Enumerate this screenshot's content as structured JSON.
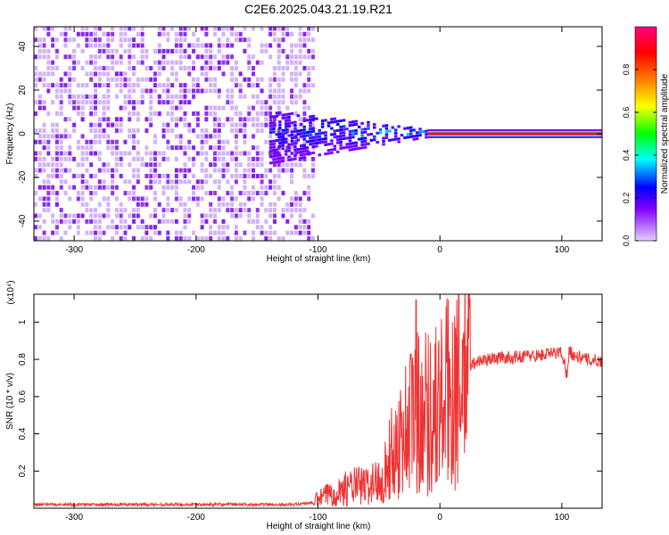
{
  "title": "C2E6.2025.043.21.19.R21",
  "chart_data": [
    {
      "type": "heatmap",
      "xlabel": "Height of straight line (km)",
      "ylabel": "Frequency (Hz)",
      "xlim": [
        -333,
        133
      ],
      "ylim": [
        -49,
        49
      ],
      "xticks": [
        -300,
        -200,
        -100,
        0,
        100
      ],
      "yticks": [
        -40,
        -20,
        0,
        20,
        40
      ],
      "colorbar": {
        "label": "Normalized spectral amplitude",
        "range": [
          0,
          1
        ],
        "ticks": [
          0.0,
          0.2,
          0.4,
          0.6,
          0.8
        ],
        "tick_labels": [
          "0.0",
          "0.2",
          "0.4",
          "0.6",
          "0.8"
        ],
        "colormap": [
          "#ffffff",
          "#e6ccff",
          "#8000ff",
          "#0000ff",
          "#00ffff",
          "#00ff00",
          "#ffff00",
          "#ff8000",
          "#ff0000",
          "#ff0080"
        ]
      },
      "regions": [
        {
          "description": "broadband noise",
          "x": [
            -333,
            -105
          ],
          "amplitude": 0.12
        },
        {
          "description": "spreading signal",
          "x": [
            -140,
            -10
          ],
          "amplitude": [
            0.15,
            0.45
          ]
        },
        {
          "description": "narrow carrier line",
          "x": [
            -10,
            133
          ],
          "frequency": 0,
          "amplitude": 0.9
        }
      ]
    },
    {
      "type": "line",
      "xlabel": "Height of straight line (km)",
      "ylabel": "SNR (10 * v/v)",
      "multiplier": "(x10⁴)",
      "xlim": [
        -333,
        133
      ],
      "ylim": [
        0,
        1.15
      ],
      "xticks": [
        -300,
        -200,
        -100,
        0,
        100
      ],
      "yticks": [
        0.2,
        0.4,
        0.6,
        0.8,
        1
      ],
      "ytick_labels": [
        "0.2",
        "0.4",
        "0.6",
        "0.8",
        "1"
      ],
      "series": [
        {
          "color": "#ee3333",
          "x": [
            -333,
            -300,
            -250,
            -200,
            -150,
            -120,
            -105,
            -100,
            -90,
            -80,
            -70,
            -60,
            -50,
            -45,
            -40,
            -35,
            -30,
            -25,
            -20,
            -18,
            -15,
            -10,
            -5,
            0,
            10,
            20,
            30,
            40,
            50,
            60,
            70,
            80,
            90,
            100,
            104,
            106,
            110,
            120,
            133
          ],
          "y": [
            0.02,
            0.02,
            0.02,
            0.02,
            0.02,
            0.02,
            0.03,
            0.05,
            0.08,
            0.1,
            0.12,
            0.12,
            0.15,
            0.2,
            0.28,
            0.35,
            0.4,
            0.48,
            0.5,
            0.55,
            0.55,
            0.52,
            0.53,
            0.55,
            0.65,
            0.74,
            0.79,
            0.8,
            0.81,
            0.81,
            0.82,
            0.82,
            0.83,
            0.84,
            0.72,
            0.85,
            0.82,
            0.8,
            0.79
          ]
        }
      ]
    }
  ]
}
